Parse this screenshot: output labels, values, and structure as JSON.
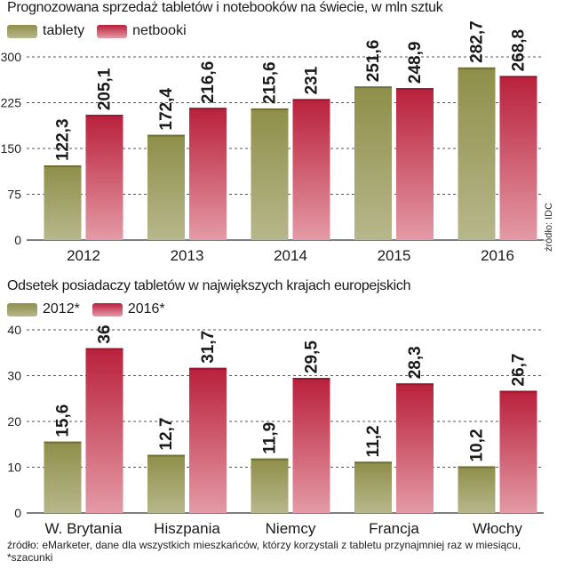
{
  "source_side": "źródło: IDC",
  "footnote": "źródło: eMarketer, dane dla wszystkich mieszkańców, którzy korzystali z tabletu przynajmniej raz w miesiącu, *szacunki",
  "colors": {
    "green_top": "#8e8f49",
    "green_bottom": "#b7b78c",
    "red_top": "#b9203b",
    "red_bottom": "#e49aa6",
    "grid": "#555555"
  },
  "chart_data": [
    {
      "type": "bar",
      "title": "Prognozowana sprzedaż tabletów i notebooków na świecie, w mln sztuk",
      "categories": [
        "2012",
        "2013",
        "2014",
        "2015",
        "2016"
      ],
      "series": [
        {
          "name": "tablety",
          "values": [
            122.3,
            172.4,
            215.6,
            251.6,
            282.7
          ],
          "labels": [
            "122,3",
            "172,4",
            "215,6",
            "251,6",
            "282,7"
          ]
        },
        {
          "name": "netbooki",
          "values": [
            205.1,
            216.6,
            231,
            248.9,
            268.8
          ],
          "labels": [
            "205,1",
            "216,6",
            "231",
            "248,9",
            "268,8"
          ]
        }
      ],
      "yticks": [
        0,
        75,
        150,
        225,
        300
      ],
      "ylim": [
        0,
        300
      ],
      "grid": true,
      "legend": "top-left"
    },
    {
      "type": "bar",
      "title": "Odsetek posiadaczy tabletów w największych krajach europejskich",
      "categories": [
        "W. Brytania",
        "Hiszpania",
        "Niemcy",
        "Francja",
        "Włochy"
      ],
      "series": [
        {
          "name": "2012*",
          "values": [
            15.6,
            12.7,
            11.9,
            11.2,
            10.2
          ],
          "labels": [
            "15,6",
            "12,7",
            "11,9",
            "11,2",
            "10,2"
          ]
        },
        {
          "name": "2016*",
          "values": [
            36,
            31.7,
            29.5,
            28.3,
            26.7
          ],
          "labels": [
            "36",
            "31,7",
            "29,5",
            "28,3",
            "26,7"
          ]
        }
      ],
      "yticks": [
        0,
        10,
        20,
        30,
        40
      ],
      "ylim": [
        0,
        40
      ],
      "grid": true,
      "legend": "top-left"
    }
  ]
}
